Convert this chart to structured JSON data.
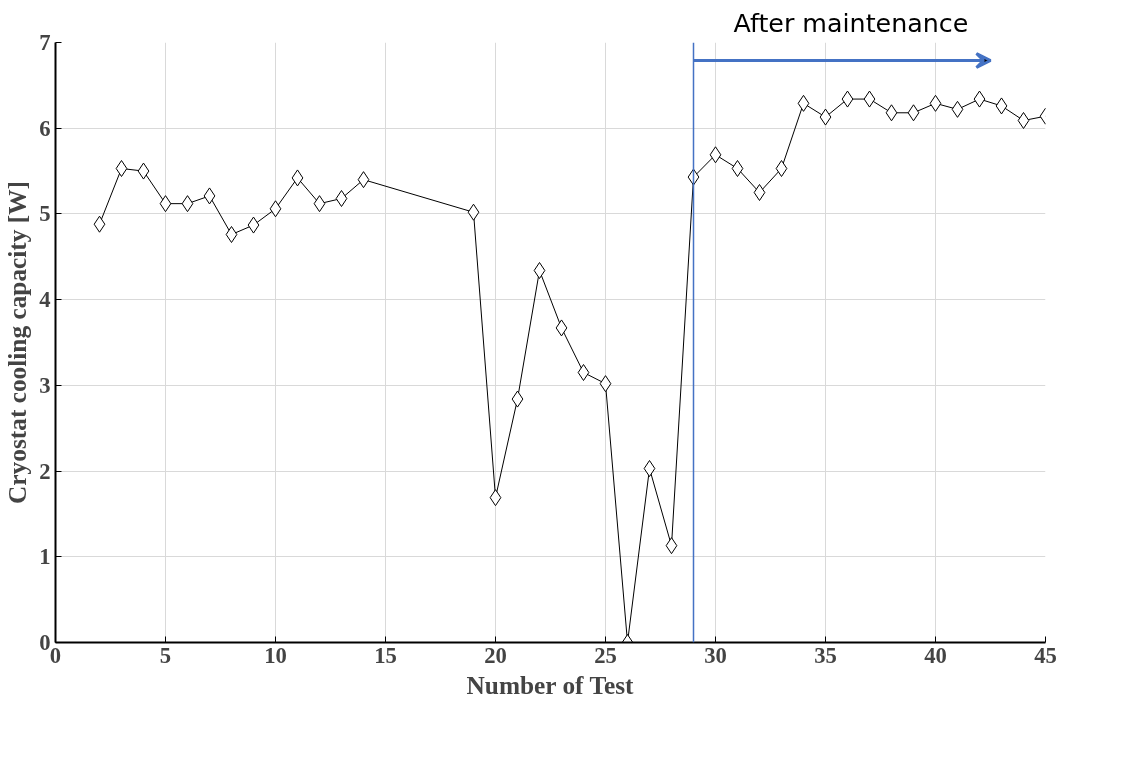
{
  "chart_data": {
    "type": "line",
    "xlabel": "Number of Test",
    "ylabel": "Cryostat cooling capacity [W]",
    "x": [
      2,
      3,
      4,
      5,
      6,
      7,
      8,
      9,
      10,
      11,
      12,
      13,
      14,
      19,
      20,
      21,
      22,
      23,
      24,
      25,
      26,
      27,
      28,
      29,
      30,
      31,
      32,
      33,
      34,
      35,
      36,
      37,
      38,
      39,
      40,
      41,
      42,
      43,
      44,
      45
    ],
    "series": [
      {
        "color": "#000000",
        "values": [
          4.88,
          5.53,
          5.5,
          5.12,
          5.12,
          5.21,
          4.76,
          4.87,
          5.06,
          5.42,
          5.12,
          5.18,
          5.4,
          5.02,
          1.69,
          2.84,
          4.34,
          3.67,
          3.15,
          3.02,
          0,
          2.03,
          1.13,
          5.43,
          5.69,
          5.53,
          5.25,
          5.53,
          6.29,
          6.13,
          6.34,
          6.34,
          6.18,
          6.18,
          6.29,
          6.22,
          6.34,
          6.26,
          6.09,
          6.14
        ]
      }
    ],
    "xlim": [
      0,
      45
    ],
    "xticks": [
      0,
      5,
      10,
      15,
      20,
      25,
      30,
      35,
      40,
      45
    ],
    "ylim": [
      0,
      7
    ],
    "yticks": [
      0,
      1,
      2,
      3,
      4,
      5,
      6,
      7
    ],
    "grid": true,
    "marker": "diamond",
    "line_style": "solid",
    "ref_lines": [
      {
        "axis": "x",
        "value": 29,
        "label": "After maintenance",
        "color": "#4472c4"
      }
    ]
  }
}
